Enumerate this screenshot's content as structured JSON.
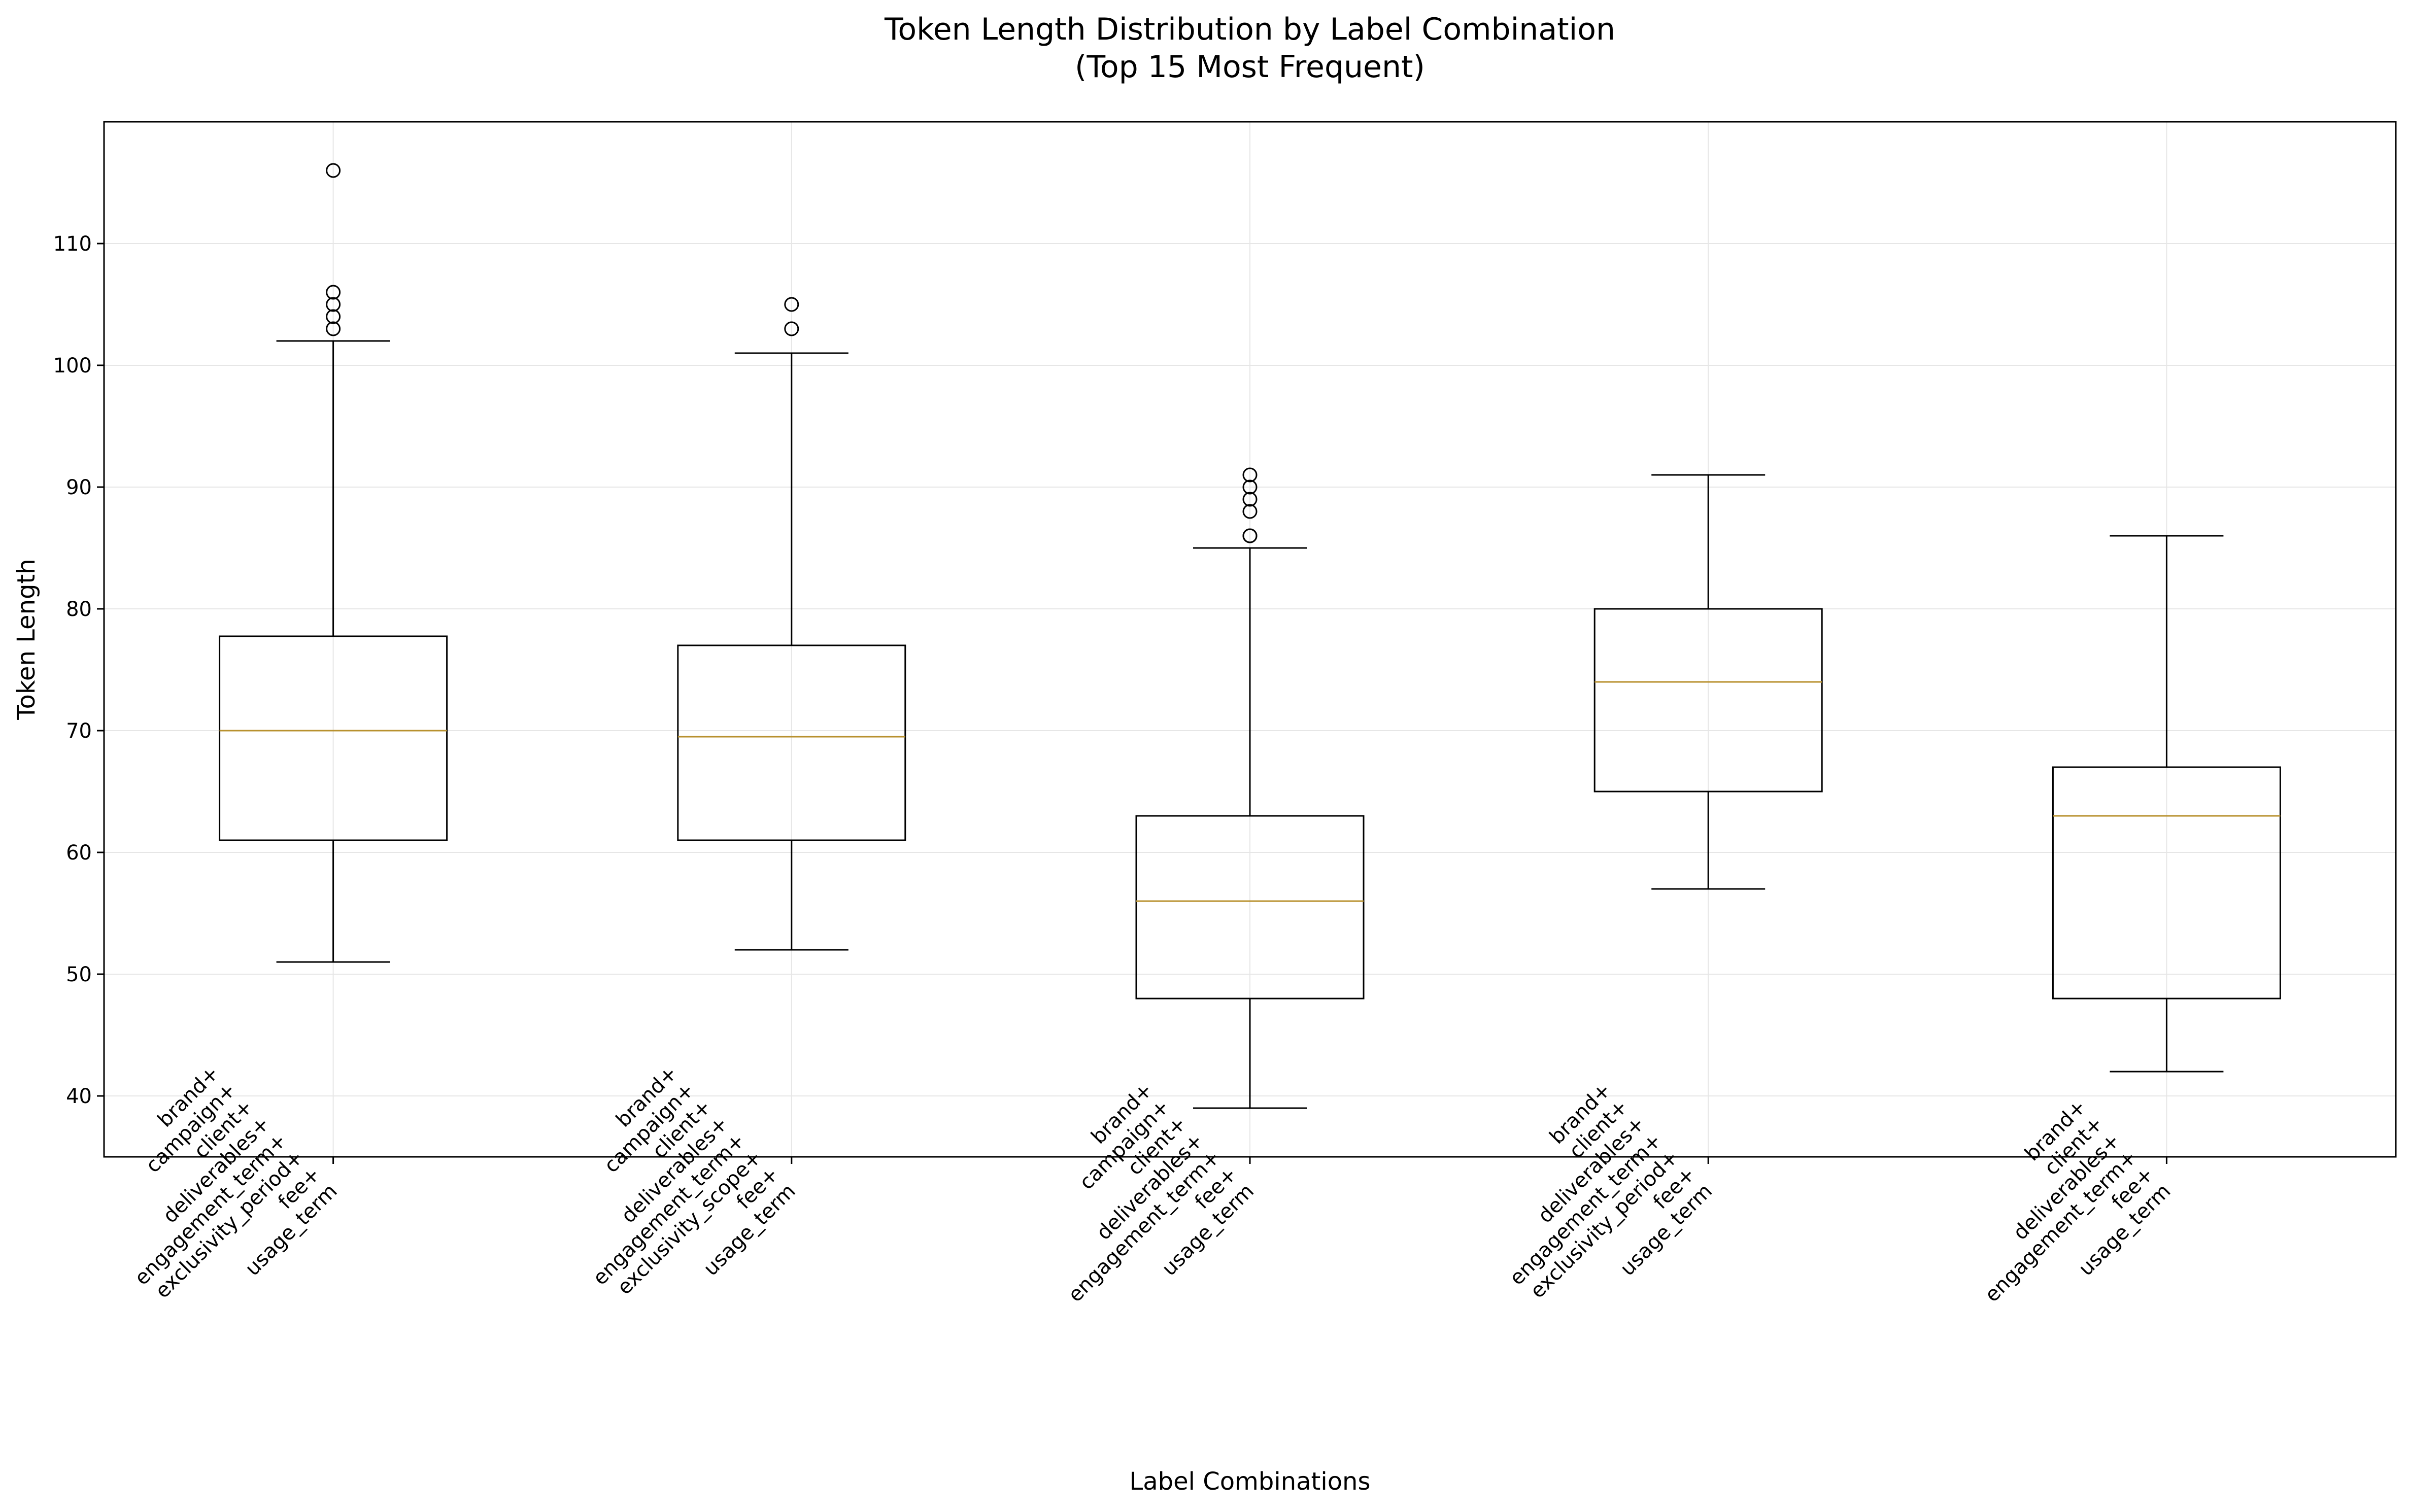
{
  "chart_data": {
    "type": "boxplot",
    "title": "Token Length Distribution by Label Combination",
    "subtitle": "(Top 15 Most Frequent)",
    "xlabel": "Label Combinations",
    "ylabel": "Token Length",
    "ylim": [
      35,
      120
    ],
    "yticks": [
      40,
      50,
      60,
      70,
      80,
      90,
      100,
      110
    ],
    "grid": true,
    "colors": {
      "box": "#000000",
      "median": "#b8912f",
      "grid": "#e6e6e6"
    },
    "categories": [
      {
        "label_lines": [
          "brand+",
          "campaign+",
          "client+",
          "deliverables+",
          "engagement_term+",
          "exclusivity_period+",
          "fee+",
          "usage_term"
        ],
        "whisker_low": 51,
        "q1": 61,
        "median": 70,
        "q3": 77.75,
        "whisker_high": 102,
        "outliers": [
          103,
          104,
          105,
          106,
          116
        ]
      },
      {
        "label_lines": [
          "brand+",
          "campaign+",
          "client+",
          "deliverables+",
          "engagement_term+",
          "exclusivity_scope+",
          "fee+",
          "usage_term"
        ],
        "whisker_low": 52,
        "q1": 61,
        "median": 69.5,
        "q3": 77,
        "whisker_high": 101,
        "outliers": [
          103,
          105
        ]
      },
      {
        "label_lines": [
          "brand+",
          "campaign+",
          "client+",
          "deliverables+",
          "engagement_term+",
          "fee+",
          "usage_term"
        ],
        "whisker_low": 39,
        "q1": 48,
        "median": 56,
        "q3": 63,
        "whisker_high": 85,
        "outliers": [
          86,
          86,
          88,
          89,
          90,
          91
        ]
      },
      {
        "label_lines": [
          "brand+",
          "client+",
          "deliverables+",
          "engagement_term+",
          "exclusivity_period+",
          "fee+",
          "usage_term"
        ],
        "whisker_low": 57,
        "q1": 65,
        "median": 74,
        "q3": 80,
        "whisker_high": 91,
        "outliers": []
      },
      {
        "label_lines": [
          "brand+",
          "client+",
          "deliverables+",
          "engagement_term+",
          "fee+",
          "usage_term"
        ],
        "whisker_low": 42,
        "q1": 48,
        "median": 63,
        "q3": 67,
        "whisker_high": 86,
        "outliers": []
      }
    ]
  }
}
